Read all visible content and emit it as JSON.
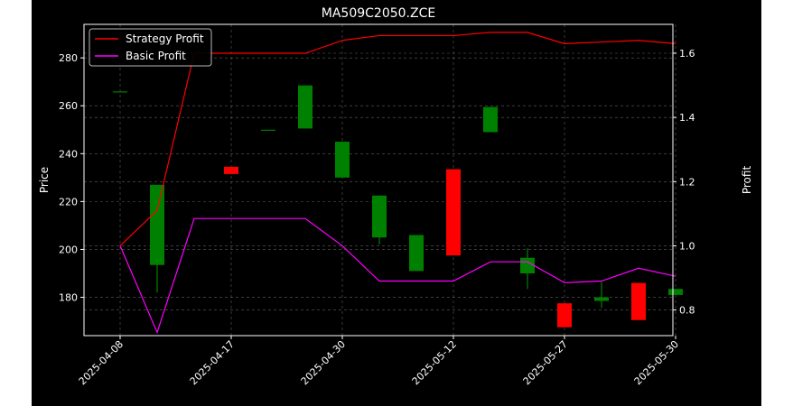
{
  "chart_data": {
    "type": "candlestick",
    "title": "MA509C2050.ZCE",
    "xlabel": "",
    "ylabel": "Price",
    "y2label": "Profit",
    "ylim": [
      164,
      294
    ],
    "y2lim": [
      0.72,
      1.69
    ],
    "yticks": [
      180,
      200,
      220,
      240,
      260,
      280
    ],
    "y2ticks": [
      0.8,
      1.0,
      1.2,
      1.4,
      1.6
    ],
    "grid": true,
    "legend_position": "top-left",
    "x_tick_labels": [
      "2025-04-08",
      "2025-04-17",
      "2025-04-30",
      "2025-05-12",
      "2025-05-27",
      "2025-05-30"
    ],
    "x_tick_indices": [
      0,
      3,
      6,
      9,
      12,
      15
    ],
    "candles": [
      {
        "i": 0,
        "open": 266,
        "close": 266,
        "high": 266,
        "low": 266
      },
      {
        "i": 1,
        "open": 193.5,
        "close": 227,
        "high": 227,
        "low": 182
      },
      {
        "i": 3,
        "open": 234.5,
        "close": 231.5,
        "high": 234.5,
        "low": 231.5
      },
      {
        "i": 4,
        "open": 250,
        "close": 250,
        "high": 250,
        "low": 250
      },
      {
        "i": 5,
        "open": 250.5,
        "close": 268.5,
        "high": 268.5,
        "low": 250.5
      },
      {
        "i": 6,
        "open": 230,
        "close": 245,
        "high": 245,
        "low": 230
      },
      {
        "i": 7,
        "open": 205,
        "close": 222.5,
        "high": 222.5,
        "low": 202
      },
      {
        "i": 8,
        "open": 191,
        "close": 206,
        "high": 206,
        "low": 191
      },
      {
        "i": 9,
        "open": 233.5,
        "close": 197.5,
        "high": 233.5,
        "low": 197.5
      },
      {
        "i": 10,
        "open": 249,
        "close": 259.5,
        "high": 259.5,
        "low": 249
      },
      {
        "i": 11,
        "open": 190,
        "close": 196.5,
        "high": 200.5,
        "low": 183.5
      },
      {
        "i": 12,
        "open": 177.5,
        "close": 167.5,
        "high": 177.5,
        "low": 167.5
      },
      {
        "i": 13,
        "open": 178.5,
        "close": 180,
        "high": 186.5,
        "low": 175.5
      },
      {
        "i": 14,
        "open": 186,
        "close": 170.5,
        "high": 186,
        "low": 170.5
      },
      {
        "i": 15,
        "open": 181,
        "close": 183.5,
        "high": 183.5,
        "low": 181
      }
    ],
    "series": [
      {
        "name": "Strategy Profit",
        "color": "#ff0000",
        "values": [
          1.0,
          1.11,
          1.6,
          1.6,
          1.6,
          1.6,
          1.64,
          1.655,
          1.655,
          1.655,
          1.665,
          1.665,
          1.63,
          1.635,
          1.64,
          1.63
        ]
      },
      {
        "name": "Basic Profit",
        "color": "#ff00ff",
        "values": [
          1.0,
          0.73,
          1.085,
          1.085,
          1.085,
          1.085,
          1.0,
          0.89,
          0.89,
          0.89,
          0.95,
          0.95,
          0.885,
          0.89,
          0.93,
          0.905
        ]
      }
    ],
    "colors": {
      "up": "#008000",
      "down": "#ff0000",
      "background": "#000000",
      "axes": "#ffffff",
      "grid": "#888888"
    }
  }
}
